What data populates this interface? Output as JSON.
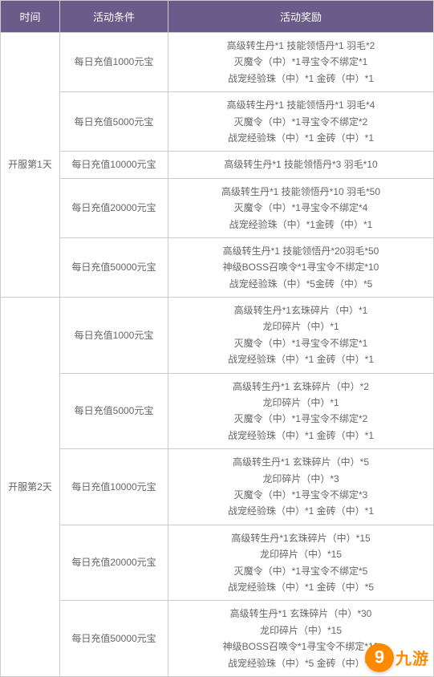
{
  "header": {
    "time": "时间",
    "condition": "活动条件",
    "reward": "活动奖励"
  },
  "colors": {
    "header_bg": "#6a5b8a",
    "header_fg": "#ffffff",
    "border": "#cccccc",
    "text": "#666666",
    "logo": "#ff8a00"
  },
  "days": [
    {
      "label": "开服第1天",
      "rows": [
        {
          "condition": "每日充值1000元宝",
          "rewards": [
            "高级转生丹*1 技能领悟丹*1 羽毛*2",
            "灭魔令（中）*1寻宝令不绑定*1",
            "战宠经验珠（中）*1 金砖（中）*1"
          ]
        },
        {
          "condition": "每日充值5000元宝",
          "rewards": [
            "高级转生丹*1 技能领悟丹*1 羽毛*4",
            "灭魔令（中）*1寻宝令不绑定*2",
            "战宠经验珠（中）*1 金砖（中）*1"
          ]
        },
        {
          "condition": "每日充值10000元宝",
          "rewards": [
            "高级转生丹*1 技能领悟丹*3 羽毛*10"
          ]
        },
        {
          "condition": "每日充值20000元宝",
          "rewards": [
            "高级转生丹*1 技能领悟丹*10 羽毛*50",
            "灭魔令（中）*1寻宝令不绑定*4",
            "战宠经验珠（中）*1金砖（中）*1"
          ]
        },
        {
          "condition": "每日充值50000元宝",
          "rewards": [
            "高级转生丹*1 技能领悟丹*20羽毛*50",
            "神级BOSS召唤令*1寻宝令不绑定*10",
            "战宠经验珠（中）*5金砖（中）*5"
          ]
        }
      ]
    },
    {
      "label": "开服第2天",
      "rows": [
        {
          "condition": "每日充值1000元宝",
          "rewards": [
            "高级转生丹*1玄珠碎片（中）*1",
            "龙印碎片（中）*1",
            "灭魔令（中）*1寻宝令不绑定*1",
            "战宠经验珠（中）*1 金砖（中）*1"
          ]
        },
        {
          "condition": "每日充值5000元宝",
          "rewards": [
            "高级转生丹*1 玄珠碎片（中）*2",
            "龙印碎片（中）*1",
            "灭魔令（中）*1寻宝令不绑定*2",
            "战宠经验珠（中）*1 金砖（中）*1"
          ]
        },
        {
          "condition": "每日充值10000元宝",
          "rewards": [
            "高级转生丹*1 玄珠碎片（中）*5",
            "龙印碎片（中）*3",
            "灭魔令（中）*1寻宝令不绑定*3",
            "战宠经验珠（中）*1 金砖（中）*1"
          ]
        },
        {
          "condition": "每日充值20000元宝",
          "rewards": [
            "高级转生丹*1玄珠碎片（中）*15",
            "龙印碎片（中）*15",
            "灭魔令（中）*1寻宝令不绑定*5",
            "战宠经验珠（中）*1 金砖（中）*5"
          ]
        },
        {
          "condition": "每日充值50000元宝",
          "rewards": [
            "高级转生丹*1 玄珠碎片（中）*30",
            "龙印碎片（中）*15",
            "神级BOSS召唤令*1寻宝令不绑定*10",
            "战宠经验珠（中）*5 金砖（中）*5"
          ]
        }
      ]
    }
  ],
  "logo": {
    "digit": "9",
    "text": "九游"
  }
}
